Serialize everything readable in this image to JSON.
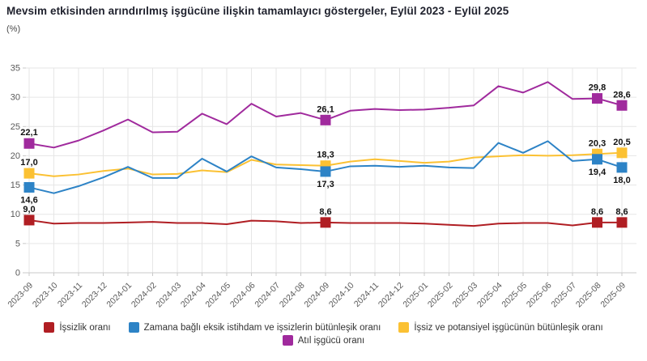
{
  "header": {
    "title": "Mevsim etkisinden arındırılmış işgücüne ilişkin tamamlayıcı göstergeler, Eylül 2023 - Eylül 2025",
    "unit": "(%)"
  },
  "chart_data": {
    "type": "line",
    "x": [
      "2023-09",
      "2023-10",
      "2023-11",
      "2023-12",
      "2024-01",
      "2024-02",
      "2024-03",
      "2024-04",
      "2024-05",
      "2024-06",
      "2024-07",
      "2024-08",
      "2024-09",
      "2024-10",
      "2024-11",
      "2024-12",
      "2025-01",
      "2025-02",
      "2025-03",
      "2025-04",
      "2025-05",
      "2025-06",
      "2025-07",
      "2025-08",
      "2025-09"
    ],
    "ylim": [
      0,
      35
    ],
    "yticks": [
      0,
      5,
      10,
      15,
      20,
      25,
      30,
      35
    ],
    "grid": true,
    "legend_position": "bottom",
    "decimal_separator": ",",
    "labeled_indices": [
      0,
      12,
      23,
      24
    ],
    "series": [
      {
        "name": "İşsizlik oranı",
        "color": "#B01E23",
        "label_side": "above",
        "values": [
          9.0,
          8.4,
          8.5,
          8.5,
          8.6,
          8.7,
          8.5,
          8.5,
          8.3,
          8.9,
          8.8,
          8.5,
          8.6,
          8.5,
          8.5,
          8.5,
          8.4,
          8.2,
          8.0,
          8.4,
          8.5,
          8.5,
          8.1,
          8.6,
          8.6
        ],
        "labeled_values": {
          "2023-09": "9,0",
          "2024-09": "8,6",
          "2025-08": "8,6",
          "2025-09": "8,6"
        }
      },
      {
        "name": "Zamana bağlı eksik istihdam ve işsizlerin bütünleşik oranı",
        "color": "#2D83C6",
        "label_side": "below",
        "values": [
          14.6,
          13.6,
          14.8,
          16.3,
          18.1,
          16.2,
          16.2,
          19.5,
          17.3,
          19.9,
          18.0,
          17.7,
          17.3,
          18.2,
          18.3,
          18.1,
          18.3,
          18.0,
          17.9,
          22.2,
          20.5,
          22.5,
          19.1,
          19.4,
          18.0
        ],
        "labeled_values": {
          "2023-09": "14,6",
          "2024-09": "17,3",
          "2025-08": "19,4",
          "2025-09": "18,0"
        }
      },
      {
        "name": "İşsiz ve potansiyel işgücünün bütünleşik oranı",
        "color": "#FBC133",
        "label_side": "above",
        "values": [
          17.0,
          16.5,
          16.8,
          17.4,
          17.8,
          16.8,
          16.9,
          17.5,
          17.2,
          19.3,
          18.5,
          18.4,
          18.3,
          19.0,
          19.4,
          19.1,
          18.8,
          19.0,
          19.7,
          19.9,
          20.1,
          20.0,
          20.1,
          20.3,
          20.5
        ],
        "labeled_values": {
          "2023-09": "17,0",
          "2024-09": "18,3",
          "2025-08": "20,3",
          "2025-09": "20,5"
        }
      },
      {
        "name": "Atıl işgücü oranı",
        "color": "#A02A9D",
        "label_side": "above",
        "values": [
          22.1,
          21.4,
          22.6,
          24.3,
          26.2,
          24.0,
          24.1,
          27.2,
          25.4,
          28.9,
          26.7,
          27.3,
          26.1,
          27.7,
          28.0,
          27.8,
          27.9,
          28.2,
          28.6,
          31.9,
          30.8,
          32.6,
          29.7,
          29.8,
          28.6
        ],
        "labeled_values": {
          "2023-09": "22,1",
          "2024-09": "26,1",
          "2025-08": "29,8",
          "2025-09": "28,6"
        }
      }
    ]
  },
  "legend": {
    "row1": [
      "İşsizlik oranı",
      "Zamana bağlı eksik istihdam ve işsizlerin bütünleşik oranı",
      "İşsiz ve potansiyel işgücünün bütünleşik oranı"
    ],
    "row2": [
      "Atıl işgücü oranı"
    ]
  },
  "style_colors": {
    "grid": "#E6E6E6",
    "axis": "#C9C9C9",
    "tick_label": "#595959",
    "data_label": "#111111",
    "title": "#20222e"
  }
}
